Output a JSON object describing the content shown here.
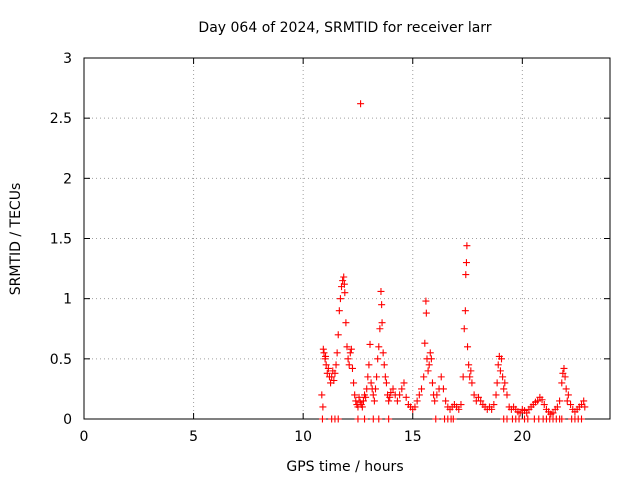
{
  "chart_data": {
    "type": "scatter",
    "title": "Day 064 of 2024, SRMTID for receiver larr",
    "xlabel": "GPS time / hours",
    "ylabel": "SRMTID / TECUs",
    "xlim": [
      0,
      24
    ],
    "ylim": [
      0,
      3
    ],
    "xticks": [
      0,
      5,
      10,
      15,
      20
    ],
    "yticks": [
      0,
      0.5,
      1,
      1.5,
      2,
      2.5,
      3
    ],
    "xtick_labels": [
      "0",
      "5",
      "10",
      "15",
      "20"
    ],
    "ytick_labels": [
      "0",
      "0.5",
      "1",
      "1.5",
      "2",
      "2.5",
      "3"
    ],
    "grid": true,
    "marker": "+",
    "color": "#ff0000",
    "series": [
      {
        "name": "SRMTID",
        "points": [
          [
            10.85,
            0.2
          ],
          [
            10.9,
            0.1
          ],
          [
            10.92,
            0.58
          ],
          [
            10.95,
            0.55
          ],
          [
            11.0,
            0.5
          ],
          [
            11.02,
            0.52
          ],
          [
            11.05,
            0.45
          ],
          [
            11.1,
            0.38
          ],
          [
            11.15,
            0.42
          ],
          [
            11.2,
            0.35
          ],
          [
            11.25,
            0.3
          ],
          [
            11.3,
            0.35
          ],
          [
            11.35,
            0.4
          ],
          [
            11.4,
            0.32
          ],
          [
            11.45,
            0.38
          ],
          [
            11.5,
            0.45
          ],
          [
            11.55,
            0.55
          ],
          [
            11.6,
            0.7
          ],
          [
            11.65,
            0.9
          ],
          [
            11.7,
            1.0
          ],
          [
            11.75,
            1.1
          ],
          [
            11.8,
            1.15
          ],
          [
            11.85,
            1.18
          ],
          [
            11.88,
            1.12
          ],
          [
            11.9,
            1.05
          ],
          [
            11.95,
            0.8
          ],
          [
            12.0,
            0.6
          ],
          [
            12.05,
            0.5
          ],
          [
            12.1,
            0.45
          ],
          [
            12.15,
            0.55
          ],
          [
            12.2,
            0.58
          ],
          [
            12.25,
            0.42
          ],
          [
            12.3,
            0.3
          ],
          [
            12.35,
            0.2
          ],
          [
            12.4,
            0.15
          ],
          [
            12.45,
            0.12
          ],
          [
            12.5,
            0.1
          ],
          [
            12.55,
            0.18
          ],
          [
            12.6,
            0.14
          ],
          [
            12.62,
            2.62
          ],
          [
            12.65,
            0.12
          ],
          [
            12.7,
            0.1
          ],
          [
            12.75,
            0.15
          ],
          [
            12.8,
            0.2
          ],
          [
            12.85,
            0.18
          ],
          [
            12.9,
            0.25
          ],
          [
            12.95,
            0.35
          ],
          [
            13.0,
            0.45
          ],
          [
            13.05,
            0.62
          ],
          [
            13.1,
            0.3
          ],
          [
            13.15,
            0.25
          ],
          [
            13.2,
            0.2
          ],
          [
            13.25,
            0.15
          ],
          [
            13.3,
            0.25
          ],
          [
            13.35,
            0.35
          ],
          [
            13.4,
            0.5
          ],
          [
            13.45,
            0.6
          ],
          [
            13.5,
            0.75
          ],
          [
            13.55,
            1.06
          ],
          [
            13.58,
            0.95
          ],
          [
            13.6,
            0.8
          ],
          [
            13.65,
            0.55
          ],
          [
            13.7,
            0.45
          ],
          [
            13.75,
            0.35
          ],
          [
            13.8,
            0.3
          ],
          [
            13.85,
            0.2
          ],
          [
            13.9,
            0.15
          ],
          [
            13.95,
            0.18
          ],
          [
            14.0,
            0.22
          ],
          [
            14.1,
            0.25
          ],
          [
            14.2,
            0.2
          ],
          [
            14.3,
            0.15
          ],
          [
            14.4,
            0.2
          ],
          [
            14.5,
            0.25
          ],
          [
            14.6,
            0.3
          ],
          [
            14.7,
            0.18
          ],
          [
            14.8,
            0.12
          ],
          [
            14.9,
            0.1
          ],
          [
            15.0,
            0.08
          ],
          [
            15.1,
            0.1
          ],
          [
            15.2,
            0.15
          ],
          [
            15.3,
            0.2
          ],
          [
            15.4,
            0.25
          ],
          [
            15.5,
            0.35
          ],
          [
            15.55,
            0.63
          ],
          [
            15.6,
            0.98
          ],
          [
            15.62,
            0.88
          ],
          [
            15.65,
            0.5
          ],
          [
            15.7,
            0.4
          ],
          [
            15.75,
            0.45
          ],
          [
            15.8,
            0.55
          ],
          [
            15.85,
            0.5
          ],
          [
            15.9,
            0.3
          ],
          [
            15.95,
            0.2
          ],
          [
            16.0,
            0.15
          ],
          [
            16.1,
            0.2
          ],
          [
            16.2,
            0.25
          ],
          [
            16.3,
            0.35
          ],
          [
            16.4,
            0.25
          ],
          [
            16.5,
            0.15
          ],
          [
            16.6,
            0.1
          ],
          [
            16.7,
            0.08
          ],
          [
            16.8,
            0.1
          ],
          [
            16.9,
            0.12
          ],
          [
            17.0,
            0.1
          ],
          [
            17.1,
            0.08
          ],
          [
            17.2,
            0.12
          ],
          [
            17.3,
            0.35
          ],
          [
            17.35,
            0.75
          ],
          [
            17.4,
            0.9
          ],
          [
            17.42,
            1.2
          ],
          [
            17.45,
            1.3
          ],
          [
            17.47,
            1.44
          ],
          [
            17.5,
            0.6
          ],
          [
            17.55,
            0.45
          ],
          [
            17.6,
            0.35
          ],
          [
            17.65,
            0.4
          ],
          [
            17.7,
            0.3
          ],
          [
            17.8,
            0.2
          ],
          [
            17.9,
            0.15
          ],
          [
            18.0,
            0.18
          ],
          [
            18.1,
            0.15
          ],
          [
            18.2,
            0.12
          ],
          [
            18.3,
            0.1
          ],
          [
            18.4,
            0.08
          ],
          [
            18.5,
            0.1
          ],
          [
            18.6,
            0.08
          ],
          [
            18.7,
            0.12
          ],
          [
            18.8,
            0.2
          ],
          [
            18.85,
            0.3
          ],
          [
            18.9,
            0.45
          ],
          [
            18.95,
            0.52
          ],
          [
            19.0,
            0.4
          ],
          [
            19.05,
            0.5
          ],
          [
            19.1,
            0.35
          ],
          [
            19.15,
            0.25
          ],
          [
            19.2,
            0.3
          ],
          [
            19.3,
            0.2
          ],
          [
            19.4,
            0.1
          ],
          [
            19.5,
            0.08
          ],
          [
            19.6,
            0.1
          ],
          [
            19.7,
            0.08
          ],
          [
            19.8,
            0.06
          ],
          [
            19.9,
            0.05
          ],
          [
            20.0,
            0.08
          ],
          [
            20.1,
            0.07
          ],
          [
            20.2,
            0.05
          ],
          [
            20.3,
            0.08
          ],
          [
            20.4,
            0.1
          ],
          [
            20.5,
            0.12
          ],
          [
            20.6,
            0.14
          ],
          [
            20.7,
            0.15
          ],
          [
            20.8,
            0.18
          ],
          [
            20.9,
            0.16
          ],
          [
            21.0,
            0.12
          ],
          [
            21.1,
            0.08
          ],
          [
            21.2,
            0.06
          ],
          [
            21.3,
            0.04
          ],
          [
            21.4,
            0.05
          ],
          [
            21.5,
            0.08
          ],
          [
            21.6,
            0.1
          ],
          [
            21.7,
            0.15
          ],
          [
            21.8,
            0.3
          ],
          [
            21.85,
            0.38
          ],
          [
            21.9,
            0.42
          ],
          [
            21.95,
            0.35
          ],
          [
            22.0,
            0.25
          ],
          [
            22.05,
            0.15
          ],
          [
            22.1,
            0.2
          ],
          [
            22.2,
            0.12
          ],
          [
            22.3,
            0.08
          ],
          [
            22.4,
            0.06
          ],
          [
            22.5,
            0.08
          ],
          [
            22.6,
            0.1
          ],
          [
            22.7,
            0.12
          ],
          [
            22.8,
            0.15
          ],
          [
            22.85,
            0.1
          ],
          [
            10.88,
            0.0
          ],
          [
            11.3,
            0.0
          ],
          [
            11.45,
            0.0
          ],
          [
            11.6,
            0.0
          ],
          [
            12.5,
            0.0
          ],
          [
            12.8,
            0.0
          ],
          [
            13.2,
            0.0
          ],
          [
            13.45,
            0.0
          ],
          [
            13.9,
            0.0
          ],
          [
            16.05,
            0.0
          ],
          [
            16.45,
            0.0
          ],
          [
            16.6,
            0.0
          ],
          [
            16.75,
            0.0
          ],
          [
            16.85,
            0.0
          ],
          [
            19.15,
            0.0
          ],
          [
            19.3,
            0.0
          ],
          [
            19.55,
            0.0
          ],
          [
            19.7,
            0.0
          ],
          [
            19.85,
            0.0
          ],
          [
            20.1,
            0.0
          ],
          [
            20.25,
            0.0
          ],
          [
            20.55,
            0.0
          ],
          [
            20.75,
            0.0
          ],
          [
            20.95,
            0.0
          ],
          [
            21.1,
            0.0
          ],
          [
            21.25,
            0.0
          ],
          [
            21.4,
            0.0
          ],
          [
            21.55,
            0.0
          ],
          [
            21.7,
            0.0
          ],
          [
            21.8,
            0.0
          ],
          [
            22.25,
            0.0
          ],
          [
            22.4,
            0.0
          ],
          [
            22.55,
            0.0
          ],
          [
            22.7,
            0.0
          ]
        ]
      }
    ]
  }
}
